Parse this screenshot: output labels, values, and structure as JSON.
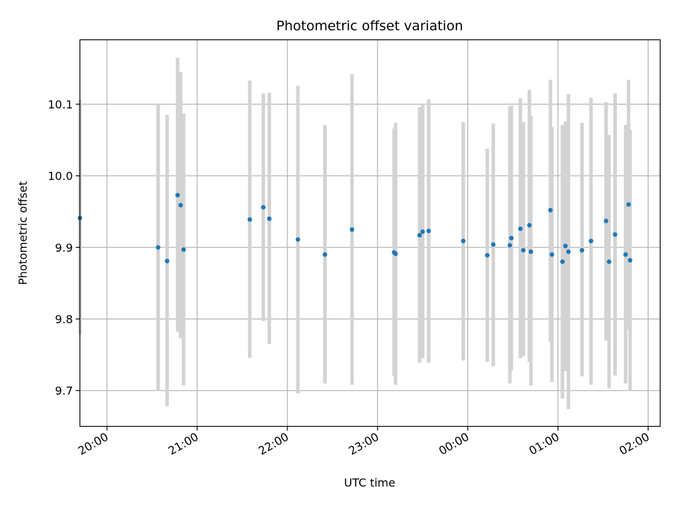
{
  "chart_data": {
    "type": "scatter",
    "title": "Photometric offset variation",
    "xlabel": "UTC time",
    "ylabel": "Photometric offset",
    "grid": true,
    "xlim": [
      "19:42",
      "02:08"
    ],
    "ylim": [
      9.65,
      10.19
    ],
    "x_ticks": [
      "20:00",
      "21:00",
      "22:00",
      "23:00",
      "00:00",
      "01:00",
      "02:00"
    ],
    "y_ticks": [
      9.7,
      9.8,
      9.9,
      10.0,
      10.1
    ],
    "colors": {
      "marker": "#1f77b4",
      "errorbar": "#d3d3d3",
      "grid": "#b0b0b0"
    },
    "points": [
      {
        "t": "19:42",
        "y": 9.941,
        "lo": 9.778,
        "hi": 10.106
      },
      {
        "t": "20:34",
        "y": 9.9,
        "lo": 9.7,
        "hi": 10.1
      },
      {
        "t": "20:40",
        "y": 9.881,
        "lo": 9.678,
        "hi": 10.085
      },
      {
        "t": "20:47",
        "y": 9.973,
        "lo": 9.782,
        "hi": 10.165
      },
      {
        "t": "20:49",
        "y": 9.959,
        "lo": 9.773,
        "hi": 10.145
      },
      {
        "t": "20:51",
        "y": 9.897,
        "lo": 9.707,
        "hi": 10.087
      },
      {
        "t": "21:35",
        "y": 9.939,
        "lo": 9.746,
        "hi": 10.133
      },
      {
        "t": "21:44",
        "y": 9.956,
        "lo": 9.797,
        "hi": 10.115
      },
      {
        "t": "21:48",
        "y": 9.94,
        "lo": 9.765,
        "hi": 10.116
      },
      {
        "t": "22:07",
        "y": 9.911,
        "lo": 9.696,
        "hi": 10.126
      },
      {
        "t": "22:25",
        "y": 9.89,
        "lo": 9.71,
        "hi": 10.071
      },
      {
        "t": "22:43",
        "y": 9.925,
        "lo": 9.708,
        "hi": 10.142
      },
      {
        "t": "23:11",
        "y": 9.893,
        "lo": 9.72,
        "hi": 10.066
      },
      {
        "t": "23:12",
        "y": 9.891,
        "lo": 9.708,
        "hi": 10.074
      },
      {
        "t": "23:28",
        "y": 9.917,
        "lo": 9.739,
        "hi": 10.096
      },
      {
        "t": "23:30",
        "y": 9.922,
        "lo": 9.745,
        "hi": 10.1
      },
      {
        "t": "23:34",
        "y": 9.923,
        "lo": 9.739,
        "hi": 10.107
      },
      {
        "t": "23:57",
        "y": 9.909,
        "lo": 9.742,
        "hi": 10.075
      },
      {
        "t": "00:13",
        "y": 9.889,
        "lo": 9.74,
        "hi": 10.038
      },
      {
        "t": "00:17",
        "y": 9.904,
        "lo": 9.734,
        "hi": 10.073
      },
      {
        "t": "00:28",
        "y": 9.903,
        "lo": 9.71,
        "hi": 10.097
      },
      {
        "t": "00:29",
        "y": 9.913,
        "lo": 9.728,
        "hi": 10.098
      },
      {
        "t": "00:35",
        "y": 9.926,
        "lo": 9.745,
        "hi": 10.108
      },
      {
        "t": "00:37",
        "y": 9.896,
        "lo": 9.748,
        "hi": 10.075
      },
      {
        "t": "00:41",
        "y": 9.931,
        "lo": 9.74,
        "hi": 10.12
      },
      {
        "t": "00:42",
        "y": 9.894,
        "lo": 9.707,
        "hi": 10.084
      },
      {
        "t": "00:55",
        "y": 9.952,
        "lo": 9.768,
        "hi": 10.134
      },
      {
        "t": "00:56",
        "y": 9.89,
        "lo": 9.712,
        "hi": 10.068
      },
      {
        "t": "01:03",
        "y": 9.88,
        "lo": 9.689,
        "hi": 10.071
      },
      {
        "t": "01:05",
        "y": 9.902,
        "lo": 9.727,
        "hi": 10.076
      },
      {
        "t": "01:07",
        "y": 9.894,
        "lo": 9.674,
        "hi": 10.114
      },
      {
        "t": "01:16",
        "y": 9.896,
        "lo": 9.72,
        "hi": 10.074
      },
      {
        "t": "01:22",
        "y": 9.909,
        "lo": 9.708,
        "hi": 10.109
      },
      {
        "t": "01:32",
        "y": 9.937,
        "lo": 9.77,
        "hi": 10.103
      },
      {
        "t": "01:34",
        "y": 9.88,
        "lo": 9.703,
        "hi": 10.057
      },
      {
        "t": "01:38",
        "y": 9.918,
        "lo": 9.721,
        "hi": 10.115
      },
      {
        "t": "01:45",
        "y": 9.89,
        "lo": 9.71,
        "hi": 10.071
      },
      {
        "t": "01:47",
        "y": 9.96,
        "lo": 9.786,
        "hi": 10.134
      },
      {
        "t": "01:48",
        "y": 9.882,
        "lo": 9.7,
        "hi": 10.064
      }
    ]
  }
}
